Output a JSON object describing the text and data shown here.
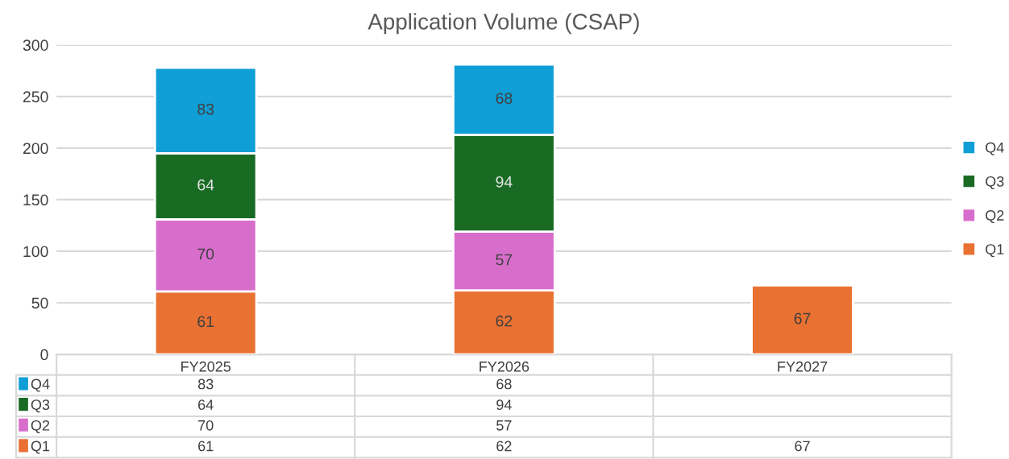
{
  "chart_data": {
    "type": "bar",
    "title": "Application Volume (CSAP)",
    "stacked": true,
    "categories": [
      "FY2025",
      "FY2026",
      "FY2027"
    ],
    "series": [
      {
        "name": "Q1",
        "color": "#e97132",
        "values": [
          61,
          62,
          67
        ],
        "value_labels": [
          "61",
          "62",
          "67"
        ]
      },
      {
        "name": "Q2",
        "color": "#d86ecc",
        "values": [
          70,
          57,
          null
        ],
        "value_labels": [
          "70",
          "57",
          null
        ]
      },
      {
        "name": "Q3",
        "color": "#196b24",
        "values": [
          64,
          94,
          null
        ],
        "value_labels": [
          "64",
          "94",
          null
        ]
      },
      {
        "name": "Q4",
        "color": "#0f9ed5",
        "values": [
          83,
          68,
          null
        ],
        "value_labels": [
          "83",
          "68",
          null
        ]
      }
    ],
    "ylim": [
      0,
      300
    ],
    "yticks": [
      0,
      50,
      100,
      150,
      200,
      250,
      300
    ],
    "annotations": [
      "83",
      "68",
      "64",
      "94",
      "70",
      "57",
      "61",
      "62",
      "67"
    ],
    "grid": "y",
    "legend": "right",
    "data_labels": true
  }
}
